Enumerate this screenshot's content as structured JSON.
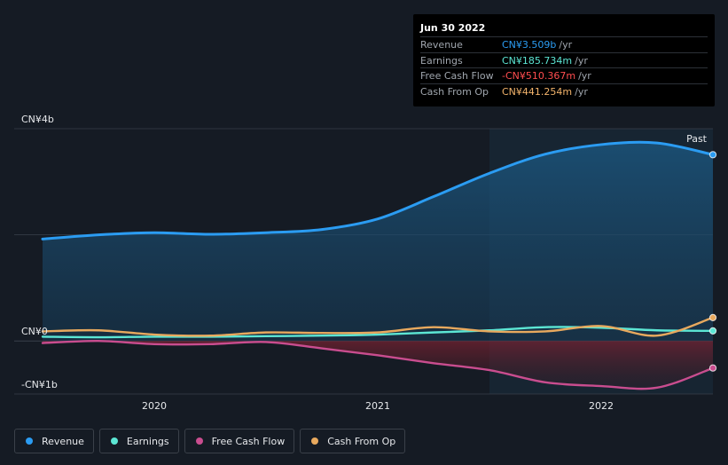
{
  "tooltip": {
    "date": "Jun 30 2022",
    "rows": [
      {
        "label": "Revenue",
        "value": "CN¥3.509b",
        "unit": "/yr",
        "color": "#2b9cf2"
      },
      {
        "label": "Earnings",
        "value": "CN¥185.734m",
        "unit": "/yr",
        "color": "#5ce6d4"
      },
      {
        "label": "Free Cash Flow",
        "value": "-CN¥510.367m",
        "unit": "/yr",
        "color": "#ff4d4f"
      },
      {
        "label": "Cash From Op",
        "value": "CN¥441.254m",
        "unit": "/yr",
        "color": "#f2b36b"
      }
    ]
  },
  "past_label": "Past",
  "legend": [
    {
      "label": "Revenue",
      "color": "#2b9cf2"
    },
    {
      "label": "Earnings",
      "color": "#5ce6d4"
    },
    {
      "label": "Free Cash Flow",
      "color": "#c94d8f"
    },
    {
      "label": "Cash From Op",
      "color": "#e8a95e"
    }
  ],
  "chart_data": {
    "type": "line",
    "y_tick_labels": [
      {
        "value": 4,
        "label": "CN¥4b"
      },
      {
        "value": 0,
        "label": "CN¥0"
      },
      {
        "value": -1,
        "label": "-CN¥1b"
      }
    ],
    "x_tick_labels": [
      {
        "value": 2020.0,
        "label": "2020"
      },
      {
        "value": 2021.0,
        "label": "2021"
      },
      {
        "value": 2022.0,
        "label": "2022"
      }
    ],
    "xlim": [
      2019.5,
      2022.5
    ],
    "ylim": [
      -1,
      4
    ],
    "past_region_start": 2021.5,
    "series": [
      {
        "name": "Revenue",
        "color": "#2b9cf2",
        "x": [
          2019.5,
          2019.75,
          2020.0,
          2020.25,
          2020.5,
          2020.75,
          2021.0,
          2021.25,
          2021.5,
          2021.75,
          2022.0,
          2022.25,
          2022.5
        ],
        "values": [
          1.92,
          2.0,
          2.04,
          2.01,
          2.04,
          2.1,
          2.3,
          2.72,
          3.16,
          3.52,
          3.7,
          3.73,
          3.51
        ]
      },
      {
        "name": "Earnings",
        "color": "#5ce6d4",
        "x": [
          2019.5,
          2019.75,
          2020.0,
          2020.25,
          2020.5,
          2020.75,
          2021.0,
          2021.25,
          2021.5,
          2021.75,
          2022.0,
          2022.25,
          2022.5
        ],
        "values": [
          0.08,
          0.07,
          0.08,
          0.08,
          0.09,
          0.1,
          0.12,
          0.16,
          0.2,
          0.26,
          0.25,
          0.2,
          0.19
        ]
      },
      {
        "name": "Free Cash Flow",
        "color": "#c94d8f",
        "x": [
          2019.5,
          2019.75,
          2020.0,
          2020.25,
          2020.5,
          2020.75,
          2021.0,
          2021.25,
          2021.5,
          2021.75,
          2022.0,
          2022.25,
          2022.5
        ],
        "values": [
          -0.04,
          0.0,
          -0.06,
          -0.06,
          -0.02,
          -0.14,
          -0.27,
          -0.42,
          -0.55,
          -0.78,
          -0.85,
          -0.88,
          -0.51
        ]
      },
      {
        "name": "Cash From Op",
        "color": "#e8a95e",
        "x": [
          2019.5,
          2019.75,
          2020.0,
          2020.25,
          2020.5,
          2020.75,
          2021.0,
          2021.25,
          2021.5,
          2021.75,
          2022.0,
          2022.25,
          2022.5
        ],
        "values": [
          0.18,
          0.2,
          0.12,
          0.1,
          0.16,
          0.15,
          0.16,
          0.26,
          0.18,
          0.18,
          0.28,
          0.1,
          0.44
        ]
      }
    ]
  }
}
